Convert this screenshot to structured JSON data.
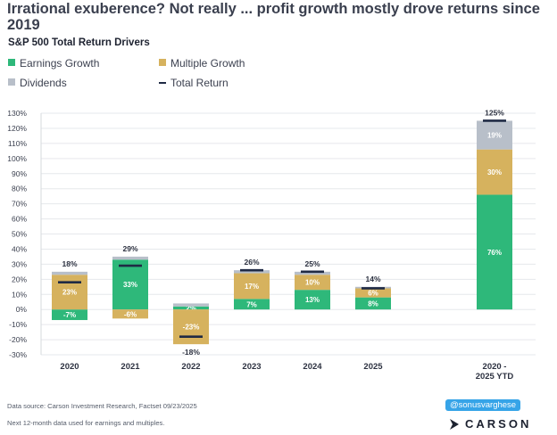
{
  "header": {
    "title": "Irrational exuberence? Not really ... profit growth mostly drove returns since 2019",
    "subtitle": "S&P 500 Total Return Drivers"
  },
  "legend": {
    "earnings": "Earnings Growth",
    "multiple": "Multiple Growth",
    "dividends": "Dividends",
    "total": "Total Return"
  },
  "colors": {
    "earnings": "#2eb87a",
    "multiple": "#d6b25e",
    "dividends": "#b8bfc9",
    "total": "#1f2a44",
    "grid": "#e6e8ec"
  },
  "chart_data": {
    "type": "bar",
    "stacked": true,
    "title": "S&P 500 Total Return Drivers",
    "ylim": [
      -30,
      130
    ],
    "yticks": [
      "-30%",
      "-20%",
      "-10%",
      "0%",
      "10%",
      "20%",
      "30%",
      "40%",
      "50%",
      "60%",
      "70%",
      "80%",
      "90%",
      "100%",
      "110%",
      "120%",
      "130%"
    ],
    "categories": [
      "2020",
      "2021",
      "2022",
      "2023",
      "2024",
      "2025",
      "2020 - 2025 YTD"
    ],
    "series": [
      {
        "name": "Earnings Growth",
        "values": [
          -7,
          33,
          2,
          7,
          13,
          8,
          76
        ],
        "labels": [
          "-7%",
          "33%",
          "2%",
          "7%",
          "13%",
          "8%",
          "76%"
        ]
      },
      {
        "name": "Multiple Growth",
        "values": [
          23,
          -6,
          -23,
          17,
          10,
          6,
          30
        ],
        "labels": [
          "23%",
          "-6%",
          "-23%",
          "17%",
          "10%",
          "6%",
          "30%"
        ]
      },
      {
        "name": "Dividends",
        "values": [
          2,
          2,
          2,
          2,
          2,
          1,
          19
        ],
        "labels": [
          "",
          "",
          "",
          "",
          "",
          "",
          "19%"
        ]
      }
    ],
    "total_return": {
      "values": [
        18,
        29,
        -18,
        26,
        25,
        14,
        125
      ],
      "labels": [
        "18%",
        "29%",
        "-18%",
        "26%",
        "25%",
        "14%",
        "125%"
      ]
    },
    "legend_position": "top-left"
  },
  "footer": {
    "source": "Data source: Carson Investment Research, Factset   09/23/2025",
    "note": "Next 12-month data used for earnings and multiples.",
    "handle": "@sonusvarghese",
    "brand": "CARSON"
  }
}
